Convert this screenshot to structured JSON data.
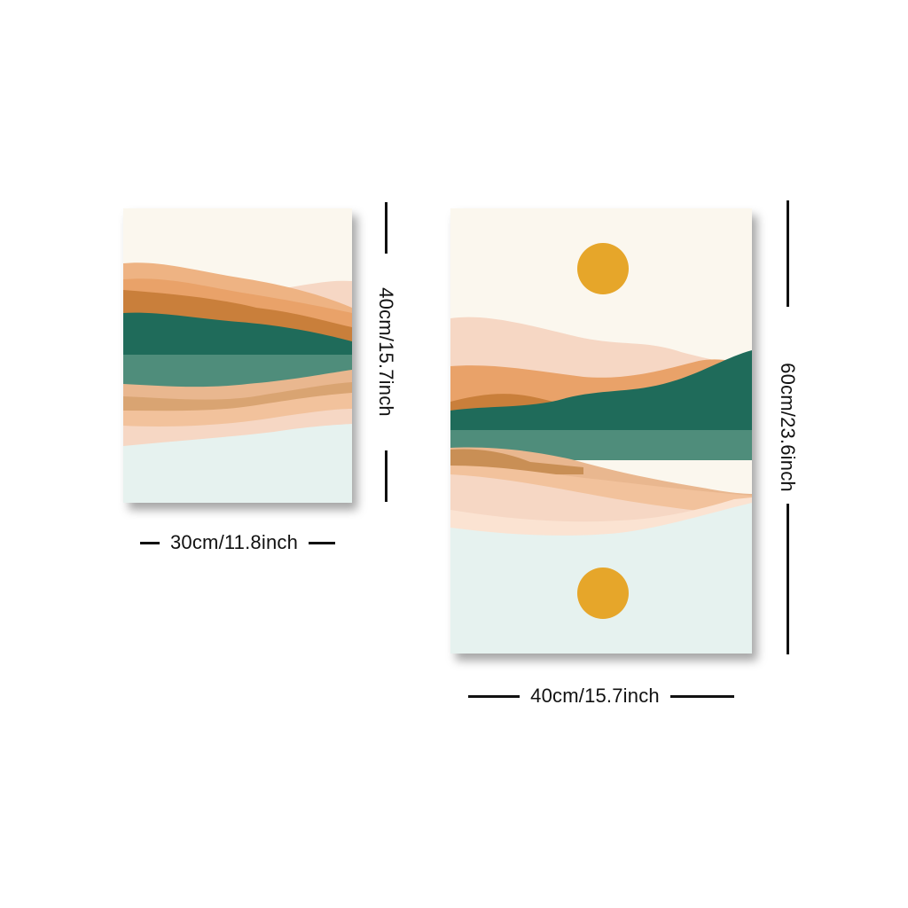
{
  "small_print": {
    "width_label": "30cm/11.8inch",
    "height_label": "40cm/15.7inch"
  },
  "large_print": {
    "width_label": "40cm/15.7inch",
    "height_label": "60cm/23.6inch"
  },
  "palette": {
    "sky": "#fbf7ee",
    "peach_light": "#f6d7c4",
    "orange": "#e9a269",
    "rust": "#c97f3b",
    "teal_dark": "#1f6b5a",
    "teal_mid": "#4f8d7b",
    "water_light": "#e6f2ef",
    "sun": "#e6a62a"
  }
}
